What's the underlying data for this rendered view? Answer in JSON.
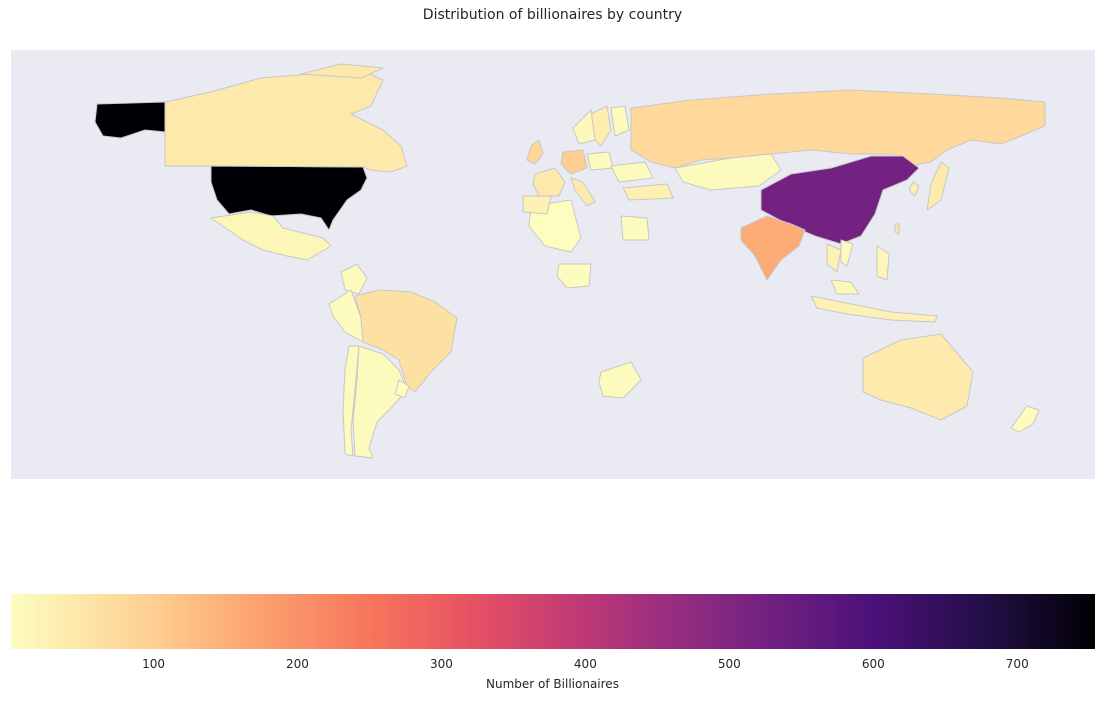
{
  "title": "Distribution of billionaires by country",
  "colorbar": {
    "label": "Number of Billionaires",
    "min": 1,
    "max": 754,
    "ticks": [
      "100",
      "200",
      "300",
      "400",
      "500",
      "600",
      "700"
    ],
    "colormap": "magma_r"
  },
  "colors": {
    "background": "#eaeaf2",
    "border": "#c8c8c8"
  },
  "chart_data": {
    "type": "heatmap",
    "title": "Distribution of billionaires by country",
    "legend_label": "Number of Billionaires",
    "range": [
      1,
      754
    ],
    "values": {
      "United States": 754,
      "China": 523,
      "India": 157,
      "Germany": 101,
      "Russia": 79,
      "United Kingdom": 82,
      "Brazil": 62,
      "Canada": 45,
      "Australia": 42,
      "Italy": 40,
      "France": 43,
      "Japan": 40,
      "Sweden": 35,
      "Hong Kong": 66,
      "South Korea": 30,
      "Switzerland": 32,
      "Turkey": 28,
      "Indonesia": 24,
      "Mexico": 14,
      "Spain": 26,
      "Israel": 18,
      "Thailand": 26,
      "Philippines": 16,
      "Kazakhstan": 6,
      "Algeria": 1,
      "Egypt": 5,
      "Nigeria": 3,
      "South Africa": 5,
      "Chile": 7,
      "Argentina": 5,
      "Peru": 6,
      "Colombia": 5,
      "Uruguay": 1,
      "New Zealand": 3,
      "Norway": 12,
      "Finland": 6,
      "Denmark": 8,
      "Poland": 7,
      "Ukraine": 6,
      "Malaysia": 11,
      "Vietnam": 6,
      "Taiwan": 50
    }
  }
}
